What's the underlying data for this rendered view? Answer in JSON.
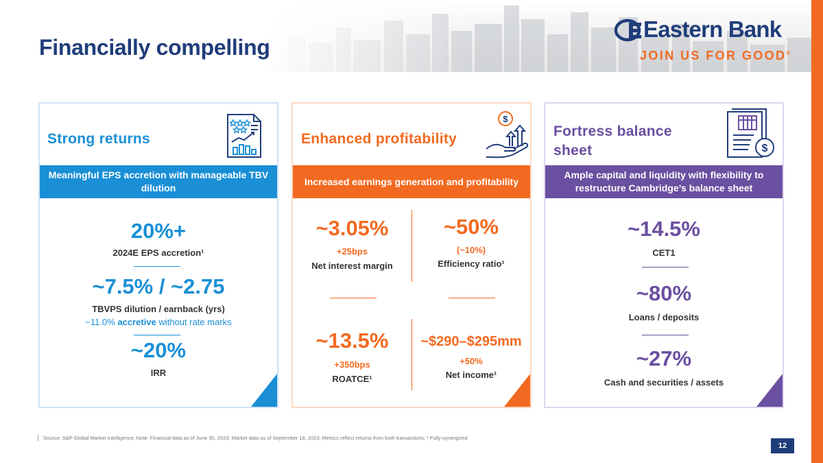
{
  "header": {
    "title": "Financially compelling",
    "logo_text": "Eastern Bank",
    "tagline": "JOIN US FOR GOOD",
    "tagline_mark": "®"
  },
  "cards": {
    "strong_returns": {
      "title": "Strong returns",
      "band": "Meaningful EPS accretion with manageable TBV dilution",
      "m1_value": "20%+",
      "m1_label": "2024E EPS accretion¹",
      "m2_value": "~7.5% / ~2.75",
      "m2_label": "TBVPS dilution / earnback (yrs)",
      "m2_note_prefix": "~11.0% ",
      "m2_note_bold": "accretive",
      "m2_note_suffix": " without rate marks",
      "m3_value": "~20%",
      "m3_label": "IRR"
    },
    "enhanced_profitability": {
      "title": "Enhanced profitability",
      "band": "Increased earnings generation and profitability",
      "nim_value": "~3.05%",
      "nim_change": "+25bps",
      "nim_label": "Net interest margin",
      "eff_value": "~50%",
      "eff_change": "(~10%)",
      "eff_label": "Efficiency ratio¹",
      "roatce_value": "~13.5%",
      "roatce_change": "+350bps",
      "roatce_label": "ROATCE¹",
      "ni_value": "~$290–$295mm",
      "ni_change": "+50%",
      "ni_label": "Net income¹"
    },
    "fortress": {
      "title": "Fortress balance sheet",
      "band": "Ample capital and liquidity with flexibility to restructure Cambridge’s balance sheet",
      "m1_value": "~14.5%",
      "m1_label": "CET1",
      "m2_value": "~80%",
      "m2_label": "Loans / deposits",
      "m3_value": "~27%",
      "m3_label": "Cash and securities / assets"
    }
  },
  "footer": {
    "source": "Source: S&P Global Market Intelligence; Note: Financial data as of June 30, 2023; Market data as of September 18, 2023; Metrics reflect returns from both transactions; ¹ Fully-synergized",
    "page_number": "12"
  },
  "colors": {
    "navy": "#1f3d7a",
    "blue": "#1a8fd6",
    "orange": "#f26a21",
    "purple": "#6b4fa0"
  }
}
